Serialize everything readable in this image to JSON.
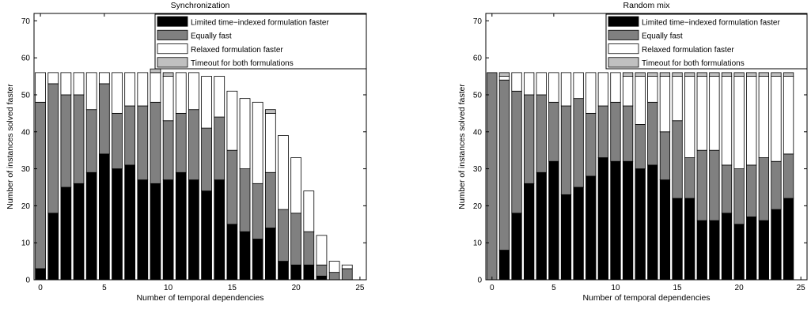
{
  "chart_data": [
    {
      "type": "bar",
      "stacked": true,
      "title": "Synchronization",
      "xlabel": "Number of temporal dependencies",
      "ylabel": "Number of instances solved faster",
      "xlim": [
        -0.5,
        25.5
      ],
      "ylim": [
        0,
        72
      ],
      "xticks": [
        0,
        5,
        10,
        15,
        20,
        25
      ],
      "yticks": [
        0,
        10,
        20,
        30,
        40,
        50,
        60,
        70
      ],
      "legend_position": "top-right",
      "grid": false,
      "x": [
        0,
        1,
        2,
        3,
        4,
        5,
        6,
        7,
        8,
        9,
        10,
        11,
        12,
        13,
        14,
        15,
        16,
        17,
        18,
        19,
        20,
        21,
        22,
        23,
        24
      ],
      "series": [
        {
          "name": "Limited time−indexed formulation faster",
          "color": "#000000",
          "values": [
            3,
            18,
            25,
            26,
            29,
            34,
            30,
            31,
            27,
            26,
            27,
            29,
            27,
            24,
            27,
            15,
            13,
            11,
            14,
            5,
            4,
            4,
            1,
            0,
            0
          ]
        },
        {
          "name": "Equally fast",
          "color": "#808080",
          "values": [
            45,
            35,
            25,
            24,
            17,
            19,
            15,
            16,
            20,
            22,
            16,
            16,
            19,
            17,
            17,
            20,
            17,
            15,
            15,
            14,
            14,
            9,
            3,
            2,
            3
          ]
        },
        {
          "name": "Relaxed formulation faster",
          "color": "#ffffff",
          "values": [
            8,
            3,
            6,
            6,
            10,
            3,
            11,
            9,
            9,
            8,
            12,
            11,
            10,
            14,
            11,
            16,
            19,
            22,
            16,
            20,
            15,
            11,
            8,
            3,
            1
          ]
        },
        {
          "name": "Timeout for both formulations",
          "color": "#c0c0c0",
          "values": [
            0,
            0,
            0,
            0,
            0,
            0,
            0,
            0,
            0,
            1,
            1,
            0,
            0,
            0,
            0,
            0,
            0,
            0,
            1,
            0,
            0,
            0,
            0,
            0,
            0
          ]
        }
      ]
    },
    {
      "type": "bar",
      "stacked": true,
      "title": "Random mix",
      "xlabel": "Number of temporal dependencies",
      "ylabel": "Number of instances solved faster",
      "xlim": [
        -0.5,
        25.5
      ],
      "ylim": [
        0,
        72
      ],
      "xticks": [
        0,
        5,
        10,
        15,
        20,
        25
      ],
      "yticks": [
        0,
        10,
        20,
        30,
        40,
        50,
        60,
        70
      ],
      "legend_position": "top-right",
      "grid": false,
      "x": [
        0,
        1,
        2,
        3,
        4,
        5,
        6,
        7,
        8,
        9,
        10,
        11,
        12,
        13,
        14,
        15,
        16,
        17,
        18,
        19,
        20,
        21,
        22,
        23,
        24
      ],
      "series": [
        {
          "name": "Limited time−indexed formulation faster",
          "color": "#000000",
          "values": [
            0,
            8,
            18,
            26,
            29,
            32,
            23,
            25,
            28,
            33,
            32,
            32,
            30,
            31,
            27,
            22,
            22,
            16,
            16,
            18,
            15,
            17,
            16,
            19,
            22
          ]
        },
        {
          "name": "Equally fast",
          "color": "#808080",
          "values": [
            56,
            46,
            33,
            24,
            21,
            16,
            24,
            24,
            17,
            14,
            16,
            15,
            12,
            17,
            13,
            21,
            11,
            19,
            19,
            13,
            15,
            14,
            17,
            13,
            12
          ]
        },
        {
          "name": "Relaxed formulation faster",
          "color": "#ffffff",
          "values": [
            0,
            1,
            5,
            6,
            6,
            8,
            9,
            7,
            11,
            9,
            8,
            8,
            13,
            7,
            15,
            12,
            22,
            20,
            20,
            24,
            25,
            24,
            22,
            23,
            21
          ]
        },
        {
          "name": "Timeout for both formulations",
          "color": "#c0c0c0",
          "values": [
            0,
            1,
            0,
            0,
            0,
            0,
            0,
            0,
            0,
            0,
            0,
            1,
            1,
            1,
            1,
            1,
            1,
            1,
            1,
            1,
            1,
            1,
            1,
            1,
            1
          ]
        }
      ]
    }
  ]
}
